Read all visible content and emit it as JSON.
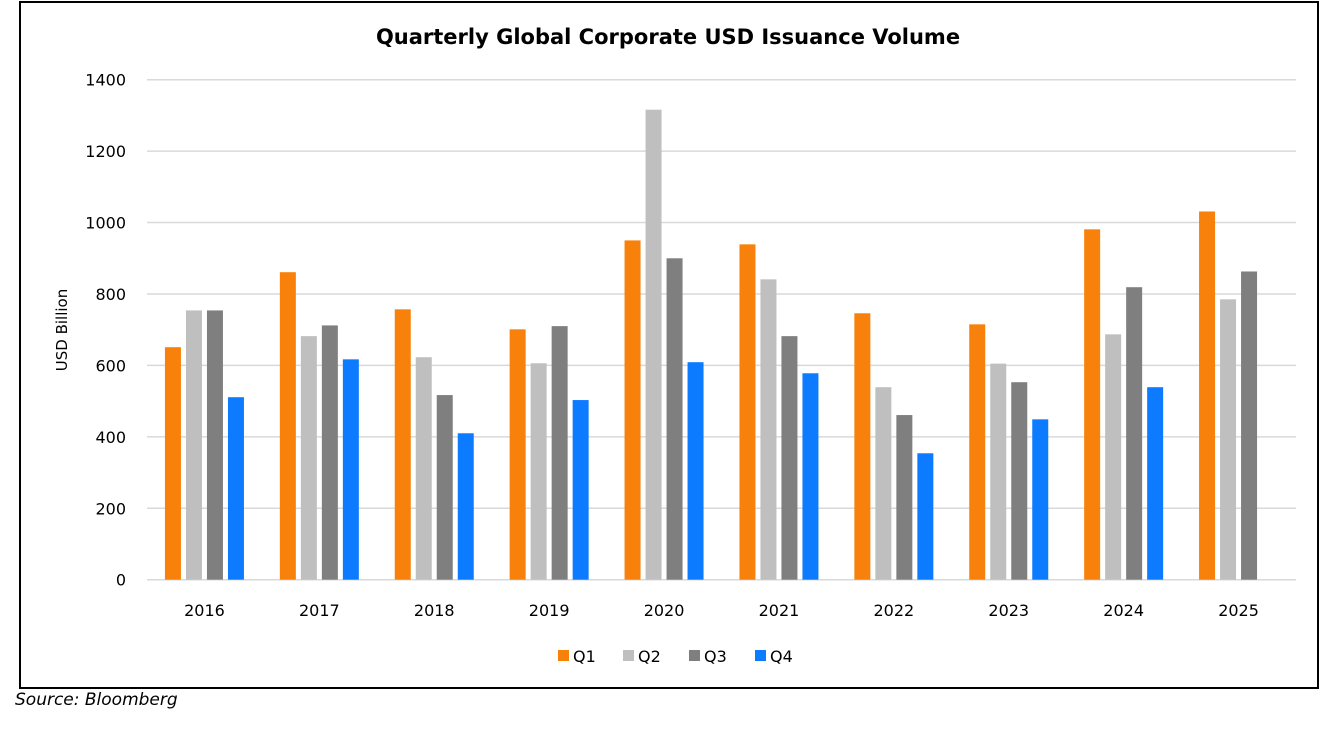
{
  "chart_data": {
    "type": "bar",
    "title": "Quarterly Global Corporate USD Issuance Volume",
    "xlabel": "",
    "ylabel": "USD Billion",
    "ylim": [
      0,
      1400
    ],
    "yticks": [
      0,
      200,
      400,
      600,
      800,
      1000,
      1200,
      1400
    ],
    "grid": true,
    "legend_position": "bottom",
    "categories": [
      "2016",
      "2017",
      "2018",
      "2019",
      "2020",
      "2021",
      "2022",
      "2023",
      "2024",
      "2025"
    ],
    "series": [
      {
        "name": "Q1",
        "color": "#F7810A",
        "values": [
          651,
          861,
          757,
          701,
          950,
          939,
          746,
          715,
          981,
          1031
        ]
      },
      {
        "name": "Q2",
        "color": "#BFBFBF",
        "values": [
          754,
          682,
          623,
          606,
          1316,
          841,
          539,
          605,
          687,
          785
        ]
      },
      {
        "name": "Q3",
        "color": "#7F7F7F",
        "values": [
          754,
          712,
          517,
          710,
          900,
          682,
          461,
          553,
          819,
          863
        ]
      },
      {
        "name": "Q4",
        "color": "#0D7BFF",
        "values": [
          511,
          617,
          410,
          503,
          609,
          578,
          354,
          449,
          539,
          null
        ]
      }
    ]
  },
  "source": "Source: Bloomberg"
}
